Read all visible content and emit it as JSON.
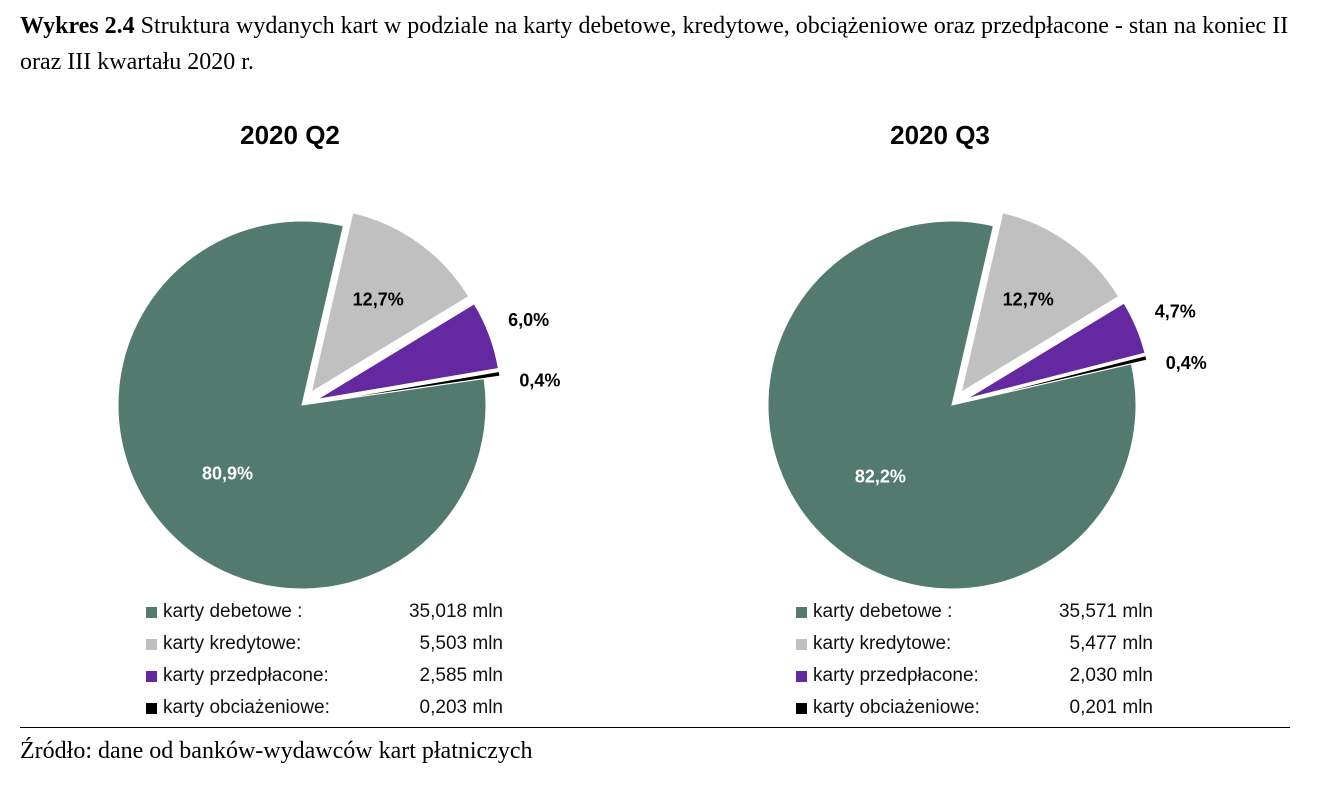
{
  "caption": {
    "label": "Wykres 2.4",
    "text": "Struktura wydanych kart w podziale na karty debetowe, kredytowe, obciążeniowe oraz przedpłacone - stan na koniec II oraz III kwartału 2020 r."
  },
  "source": "Źródło: dane od banków-wydawców kart płatniczych",
  "colors": {
    "debetowe": "#527A6F",
    "kredytowe": "#C0C0C0",
    "przedplacone": "#6428A0",
    "obciazeniowe": "#000000"
  },
  "chart_data": [
    {
      "type": "pie",
      "title": "2020 Q2",
      "slices": [
        {
          "name": "karty debetowe",
          "legend_label": "karty debetowe :",
          "percent": 80.9,
          "label": "80,9%",
          "value_label": "35,018 mln",
          "exploded": false
        },
        {
          "name": "karty kredytowe",
          "legend_label": "karty kredytowe:",
          "percent": 12.7,
          "label": "12,7%",
          "value_label": "5,503 mln",
          "exploded": true
        },
        {
          "name": "karty przedpłacone",
          "legend_label": "karty przedpłacone:",
          "percent": 6.0,
          "label": "6,0%",
          "value_label": "2,585 mln",
          "exploded": true
        },
        {
          "name": "karty obciażeniowe",
          "legend_label": "karty obciażeniowe:",
          "percent": 0.4,
          "label": "0,4%",
          "value_label": "0,203 mln",
          "exploded": true
        }
      ]
    },
    {
      "type": "pie",
      "title": "2020 Q3",
      "slices": [
        {
          "name": "karty debetowe",
          "legend_label": "karty debetowe :",
          "percent": 82.2,
          "label": "82,2%",
          "value_label": "35,571 mln",
          "exploded": false
        },
        {
          "name": "karty kredytowe",
          "legend_label": "karty kredytowe:",
          "percent": 12.7,
          "label": "12,7%",
          "value_label": "5,477 mln",
          "exploded": true
        },
        {
          "name": "karty przedpłacone",
          "legend_label": "karty przedpłacone:",
          "percent": 4.7,
          "label": "4,7%",
          "value_label": "2,030 mln",
          "exploded": true
        },
        {
          "name": "karty obciażeniowe",
          "legend_label": "karty obciażeniowe:",
          "percent": 0.4,
          "label": "0,4%",
          "value_label": "0,201 mln",
          "exploded": true
        }
      ]
    }
  ]
}
